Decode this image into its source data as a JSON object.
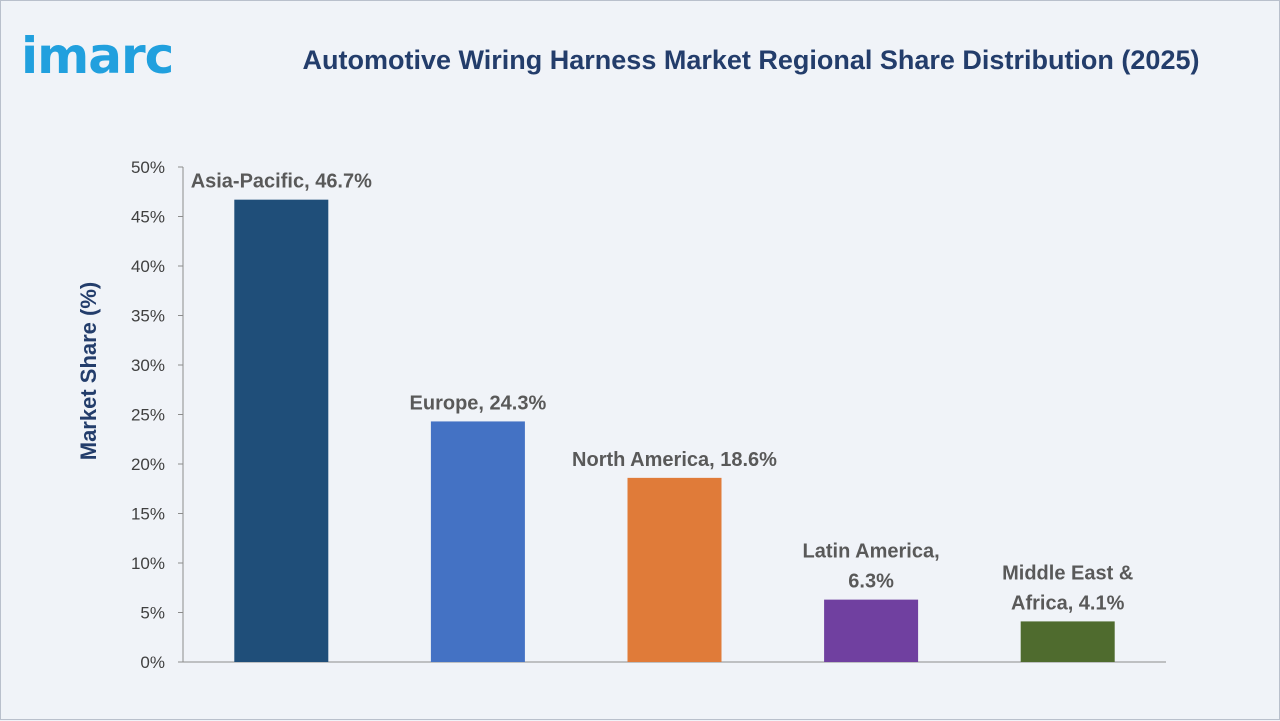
{
  "brand": {
    "logo_text": "imarc"
  },
  "chart_data": {
    "type": "bar",
    "title": "Automotive Wiring Harness Market Regional Share Distribution (2025)",
    "xlabel": "",
    "ylabel": "Market Share (%)",
    "ylim": [
      0,
      50
    ],
    "yticks": [
      "0%",
      "5%",
      "10%",
      "15%",
      "20%",
      "25%",
      "30%",
      "35%",
      "40%",
      "45%",
      "50%"
    ],
    "categories": [
      "Asia-Pacific",
      "Europe",
      "North America",
      "Latin America",
      "Middle East & Africa"
    ],
    "values": [
      46.7,
      24.3,
      18.6,
      6.3,
      4.1
    ],
    "data_labels": [
      [
        "Asia-Pacific, 46.7%"
      ],
      [
        "Europe, 24.3%"
      ],
      [
        "North America, 18.6%"
      ],
      [
        "Latin America,",
        "6.3%"
      ],
      [
        "Middle East &",
        "Africa, 4.1%"
      ]
    ],
    "colors": [
      "#1f4e79",
      "#4472c4",
      "#e07b39",
      "#7040a0",
      "#4f6b2e"
    ],
    "grid": false,
    "legend": "none"
  }
}
